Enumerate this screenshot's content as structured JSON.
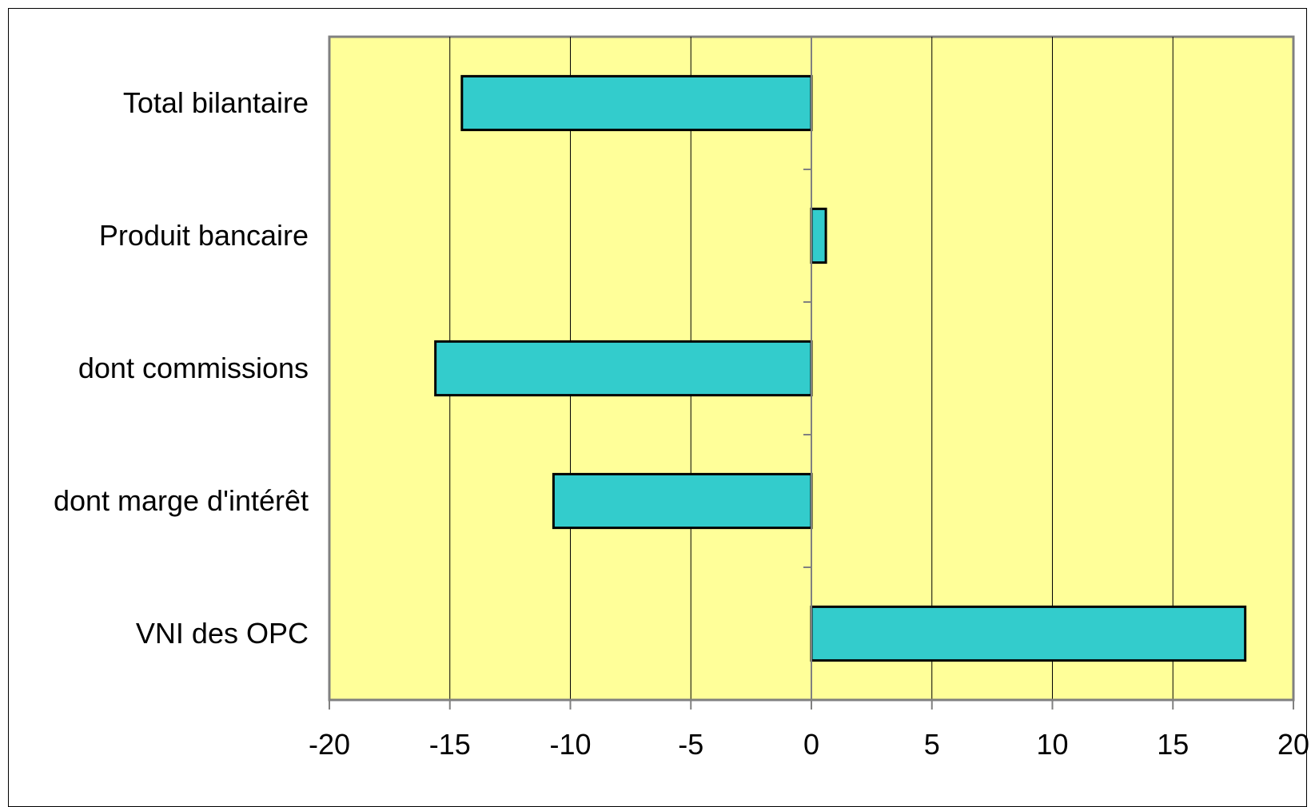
{
  "chart_data": {
    "type": "bar",
    "orientation": "horizontal",
    "title": "",
    "xlabel": "",
    "ylabel": "",
    "categories": [
      "Total bilantaire",
      "Produit bancaire",
      "dont commissions",
      "dont marge d'intérêt",
      "VNI des OPC"
    ],
    "values": [
      -14.5,
      0.6,
      -15.6,
      -10.7,
      18.0
    ],
    "xlim": [
      -20,
      20
    ],
    "xticks": [
      -20,
      -15,
      -10,
      -5,
      0,
      5,
      10,
      15,
      20
    ],
    "xtick_labels": [
      "-20",
      "-15",
      "-10",
      "-5",
      "0",
      "5",
      "10",
      "15",
      "20"
    ],
    "grid": "vertical",
    "legend": "none",
    "colors": {
      "plot_background": "#FFFF99",
      "bar_fill": "#33CCCC",
      "bar_stroke": "#000000",
      "gridline": "#000000",
      "plot_border": "#808080"
    }
  }
}
